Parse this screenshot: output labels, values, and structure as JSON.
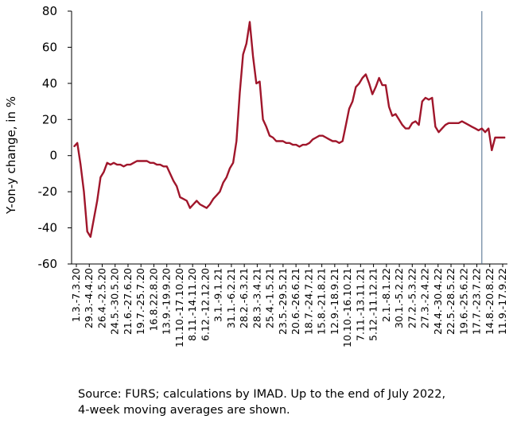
{
  "chart_data": {
    "type": "line",
    "ylabel": "Y-on-y change, in %",
    "ylim": [
      -60,
      80
    ],
    "yticks": [
      80,
      60,
      40,
      20,
      0,
      -20,
      -40,
      -60
    ],
    "grid": false,
    "series_color": "#a0162b",
    "marker_line_color": "#4a6a8a",
    "x_tick_labels": [
      "1.3.-7.3.20",
      "29.3.-4.4.20",
      "26.4.-2.5.20",
      "24.5.-30.5.20",
      "21.6.-27.6.20",
      "19.7.-25.7.20",
      "16.8.22.8.20",
      "13.9.-19.9.20",
      "11.10.-17.10.20",
      "8.11.-14.11.20",
      "6.12.-12.12.20",
      "3.1.-9.1.21",
      "31.1.-6.2.21",
      "28.2.-6.3.21",
      "28.3.-3.4.21",
      "25.4.-1.5.21",
      "23.5.-29.5.21",
      "20.6.-26.6.21",
      "18.7.-24.7.21",
      "15.8.-21.8.21",
      "12.9.-18.9.21",
      "10.10.-16.10.21",
      "7.11.-13.11.21",
      "5.12.-11.12.21",
      "2.1.-8.1.22",
      "30.1.-5.2.22",
      "27.2.-5.3.22",
      "27.3.-2.4.22",
      "24.4.-30.4.22",
      "22.5.-28.5.22",
      "19.6.-25.6.22",
      "17.7.-23.7.22",
      "14.8.-20.8.22",
      "11.9.-17.9.22"
    ],
    "values": [
      5,
      7,
      -5,
      -20,
      -42,
      -45,
      -35,
      -25,
      -12,
      -9,
      -4,
      -5,
      -4,
      -5,
      -5,
      -6,
      -5,
      -5,
      -4,
      -3,
      -3,
      -3,
      -3,
      -4,
      -4,
      -5,
      -5,
      -6,
      -6,
      -10,
      -14,
      -17,
      -23,
      -24,
      -25,
      -29,
      -27,
      -25,
      -27,
      -28,
      -29,
      -27,
      -24,
      -22,
      -20,
      -15,
      -12,
      -7,
      -4,
      8,
      35,
      56,
      62,
      74,
      55,
      40,
      41,
      20,
      16,
      11,
      10,
      8,
      8,
      8,
      7,
      7,
      6,
      6,
      5,
      6,
      6,
      7,
      9,
      10,
      11,
      11,
      10,
      9,
      8,
      8,
      7,
      8,
      17,
      26,
      30,
      38,
      40,
      43,
      45,
      40,
      34,
      38,
      43,
      39,
      39,
      27,
      22,
      23,
      20,
      17,
      15,
      15,
      18,
      19,
      17,
      30,
      32,
      31,
      32,
      16,
      13,
      15,
      17,
      18,
      18,
      18,
      18,
      19,
      18,
      17,
      16,
      15,
      14,
      15,
      13,
      15,
      3,
      10,
      10,
      10,
      10
    ]
  },
  "source": {
    "line1": "Source: FURS; calculations by IMAD. Up to the end of July 2022,",
    "line2": "4-week moving averages are shown."
  }
}
